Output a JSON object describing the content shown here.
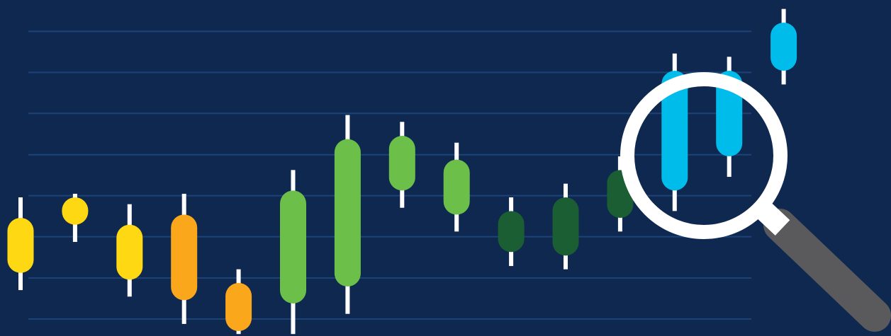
{
  "chart_data": {
    "type": "candlestick",
    "title": "",
    "xlabel": "",
    "ylabel": "",
    "grid": true,
    "legend": "none",
    "ylim": [
      0,
      100
    ],
    "candles": [
      {
        "index": 1,
        "low": 11.5,
        "open": 16.8,
        "close": 33.7,
        "high": 40.0,
        "color": "#ffd814"
      },
      {
        "index": 2,
        "low": 26.3,
        "open": 31.6,
        "close": 40.0,
        "high": 41.1,
        "color": "#ffd814"
      },
      {
        "index": 3,
        "low": 9.5,
        "open": 14.7,
        "close": 31.6,
        "high": 37.9,
        "color": "#ffd814"
      },
      {
        "index": 4,
        "low": 1.1,
        "open": 8.4,
        "close": 34.7,
        "high": 41.1,
        "color": "#fba71c"
      },
      {
        "index": 5,
        "low": -2.0,
        "open": -1.1,
        "close": 13.7,
        "high": 17.9,
        "color": "#fba71c"
      },
      {
        "index": 6,
        "low": -2.0,
        "open": 7.4,
        "close": 42.1,
        "high": 48.4,
        "color": "#6cc04a"
      },
      {
        "index": 7,
        "low": 4.2,
        "open": 12.6,
        "close": 57.9,
        "high": 65.3,
        "color": "#6cc04a"
      },
      {
        "index": 8,
        "low": 36.8,
        "open": 42.1,
        "close": 58.9,
        "high": 63.2,
        "color": "#6cc04a"
      },
      {
        "index": 9,
        "low": 29.5,
        "open": 34.7,
        "close": 51.6,
        "high": 56.8,
        "color": "#6cc04a"
      },
      {
        "index": 10,
        "low": 18.9,
        "open": 23.2,
        "close": 35.8,
        "high": 40.0,
        "color": "#1c5e33"
      },
      {
        "index": 11,
        "low": 17.9,
        "open": 22.1,
        "close": 40.0,
        "high": 44.2,
        "color": "#1c5e33"
      },
      {
        "index": 12,
        "low": 29.5,
        "open": 33.7,
        "close": 48.4,
        "high": 52.6,
        "color": "#1c5e33"
      },
      {
        "index": 13,
        "low": 35.8,
        "open": 42.1,
        "close": 78.9,
        "high": 84.2,
        "color": "#00bceb"
      },
      {
        "index": 14,
        "low": 46.3,
        "open": 52.6,
        "close": 78.9,
        "high": 83.2,
        "color": "#00bceb"
      },
      {
        "index": 15,
        "low": 74.7,
        "open": 78.9,
        "close": 93.7,
        "high": 97.9,
        "color": "#00bceb"
      }
    ]
  },
  "colors": {
    "background": "#0f2850",
    "gridline": "#1f4a82",
    "wick": "#ffffff",
    "lens_ring": "#ffffff",
    "handle": "#5a5a5c"
  },
  "icons": {
    "magnifier": "magnifying-glass-icon"
  }
}
